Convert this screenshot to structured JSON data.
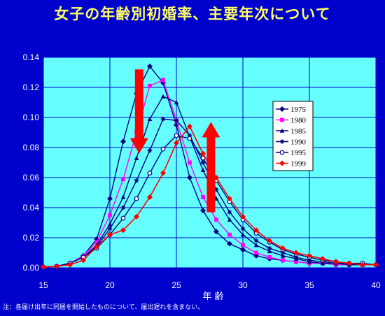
{
  "title": "女子の年齢別初婚率、主要年次について",
  "note": "注：各届け出年に同居を開始したものについて、届出遅れを含まない。",
  "chart_data": {
    "type": "line",
    "xlabel": "年 齢",
    "ylabel": "",
    "xlim": [
      15,
      40
    ],
    "ylim": [
      0,
      0.14
    ],
    "x_ticks": [
      "15",
      "20",
      "25",
      "30",
      "35",
      "40"
    ],
    "y_ticks": [
      "0.00",
      "0.02",
      "0.04",
      "0.06",
      "0.08",
      "0.10",
      "0.12",
      "0.14"
    ],
    "grid": true,
    "plot_background": "#66ffff",
    "legend_position": "right",
    "x": [
      15,
      16,
      17,
      18,
      19,
      20,
      21,
      22,
      23,
      24,
      25,
      26,
      27,
      28,
      29,
      30,
      31,
      32,
      33,
      34,
      35,
      36,
      37,
      38,
      39,
      40
    ],
    "series": [
      {
        "name": "1975",
        "color": "#000080",
        "marker": "diamond",
        "values": [
          0.0005,
          0.001,
          0.003,
          0.008,
          0.019,
          0.046,
          0.084,
          0.116,
          0.134,
          0.123,
          0.095,
          0.06,
          0.038,
          0.024,
          0.016,
          0.012,
          0.008,
          0.006,
          0.005,
          0.004,
          0.003,
          0.003,
          0.002,
          0.002,
          0.002,
          0.002
        ]
      },
      {
        "name": "1980",
        "color": "#ff00ff",
        "marker": "square",
        "values": [
          0.0005,
          0.001,
          0.003,
          0.008,
          0.017,
          0.035,
          0.059,
          0.09,
          0.121,
          0.125,
          0.098,
          0.07,
          0.047,
          0.032,
          0.022,
          0.015,
          0.01,
          0.007,
          0.005,
          0.004,
          0.003,
          0.003,
          0.002,
          0.002,
          0.002,
          0.002
        ]
      },
      {
        "name": "1985",
        "color": "#000080",
        "marker": "triangle",
        "values": [
          0.0005,
          0.001,
          0.003,
          0.007,
          0.015,
          0.029,
          0.047,
          0.073,
          0.099,
          0.114,
          0.11,
          0.087,
          0.065,
          0.046,
          0.032,
          0.022,
          0.015,
          0.011,
          0.008,
          0.006,
          0.004,
          0.003,
          0.003,
          0.002,
          0.002,
          0.002
        ]
      },
      {
        "name": "1990",
        "color": "#000080",
        "marker": "star",
        "values": [
          0.0005,
          0.001,
          0.003,
          0.007,
          0.014,
          0.026,
          0.04,
          0.058,
          0.078,
          0.099,
          0.098,
          0.088,
          0.07,
          0.052,
          0.037,
          0.026,
          0.018,
          0.013,
          0.01,
          0.007,
          0.005,
          0.004,
          0.003,
          0.003,
          0.002,
          0.002
        ]
      },
      {
        "name": "1995",
        "color": "#000080",
        "marker": "circle",
        "values": [
          0.0005,
          0.001,
          0.003,
          0.007,
          0.013,
          0.022,
          0.033,
          0.046,
          0.063,
          0.079,
          0.088,
          0.086,
          0.073,
          0.058,
          0.044,
          0.032,
          0.023,
          0.017,
          0.012,
          0.009,
          0.007,
          0.005,
          0.004,
          0.003,
          0.003,
          0.002
        ]
      },
      {
        "name": "1999",
        "color": "#ff0000",
        "marker": "diamond",
        "values": [
          0.0005,
          0.001,
          0.002,
          0.005,
          0.014,
          0.022,
          0.025,
          0.034,
          0.047,
          0.063,
          0.083,
          0.094,
          0.076,
          0.06,
          0.046,
          0.034,
          0.025,
          0.018,
          0.013,
          0.01,
          0.008,
          0.006,
          0.004,
          0.003,
          0.002,
          0.002
        ]
      }
    ],
    "annotations": [
      {
        "type": "arrow",
        "direction": "down",
        "x": 22.2,
        "y_from": 0.132,
        "y_to": 0.076,
        "color": "#ff0000"
      },
      {
        "type": "arrow",
        "direction": "up",
        "x": 27.6,
        "y_from": 0.037,
        "y_to": 0.097,
        "color": "#ff0000"
      }
    ]
  }
}
